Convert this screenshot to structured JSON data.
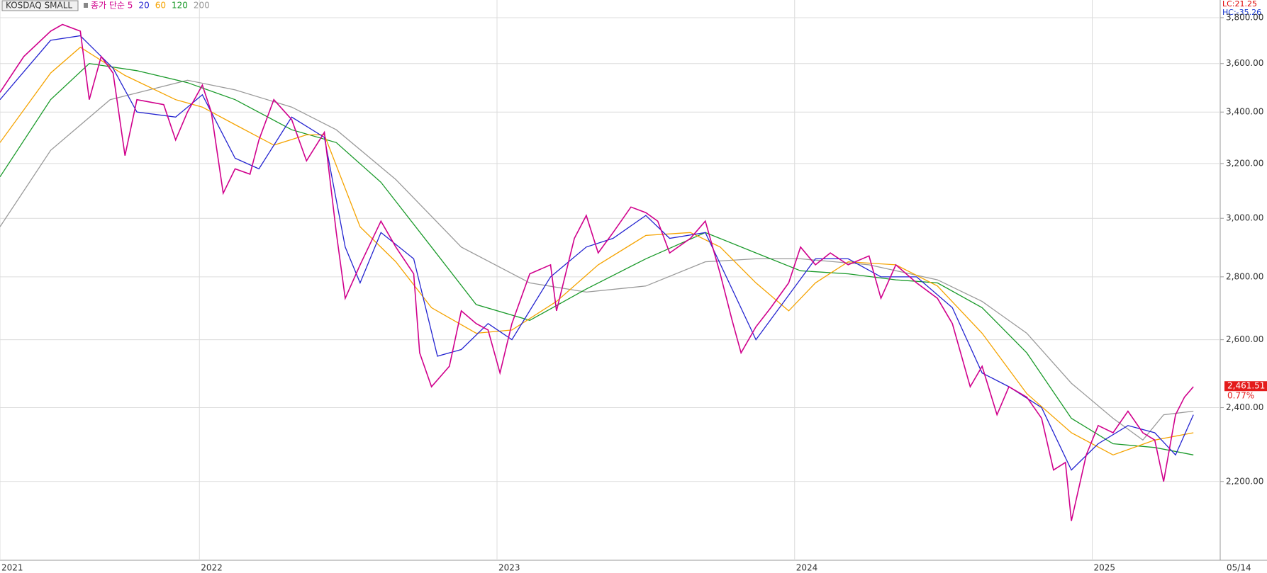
{
  "chart_data": {
    "type": "line",
    "title": "KOSDAQ SMALL",
    "log_scale": true,
    "grid": true,
    "xlim": [
      2021.33,
      2025.43
    ],
    "xticks": [
      {
        "value": 2021.33,
        "label": "2021"
      },
      2022,
      2023,
      2024,
      2025
    ],
    "ylim": [
      2005,
      3880
    ],
    "yticks": [
      {
        "value": 2200,
        "label": "2,200.00"
      },
      {
        "value": 2400,
        "label": "2,400.00"
      },
      {
        "value": 2600,
        "label": "2,600.00"
      },
      {
        "value": 2800,
        "label": "2,800.00"
      },
      {
        "value": 3000,
        "label": "3,000.00"
      },
      {
        "value": 3200,
        "label": "3,200.00"
      },
      {
        "value": 3400,
        "label": "3,400.00"
      },
      {
        "value": 3600,
        "label": "3,600.00"
      },
      {
        "value": 3800,
        "label": "3,800.00"
      }
    ],
    "series": [
      {
        "name": "종가 단순 5",
        "color": "#d0008c",
        "x": [
          2021.33,
          2021.41,
          2021.5,
          2021.54,
          2021.6,
          2021.63,
          2021.67,
          2021.71,
          2021.75,
          2021.79,
          2021.88,
          2021.92,
          2021.96,
          2022.01,
          2022.04,
          2022.08,
          2022.12,
          2022.17,
          2022.2,
          2022.25,
          2022.31,
          2022.36,
          2022.42,
          2022.46,
          2022.49,
          2022.54,
          2022.61,
          2022.66,
          2022.72,
          2022.74,
          2022.78,
          2022.84,
          2022.88,
          2022.93,
          2022.97,
          2023.01,
          2023.05,
          2023.11,
          2023.18,
          2023.2,
          2023.26,
          2023.3,
          2023.34,
          2023.39,
          2023.45,
          2023.5,
          2023.54,
          2023.58,
          2023.65,
          2023.7,
          2023.75,
          2023.79,
          2023.82,
          2023.87,
          2023.92,
          2023.98,
          2024.02,
          2024.07,
          2024.12,
          2024.18,
          2024.25,
          2024.29,
          2024.34,
          2024.41,
          2024.48,
          2024.53,
          2024.59,
          2024.63,
          2024.68,
          2024.72,
          2024.78,
          2024.83,
          2024.87,
          2024.91,
          2024.93,
          2024.98,
          2025.02,
          2025.07,
          2025.12,
          2025.17,
          2025.21,
          2025.24,
          2025.28,
          2025.31,
          2025.34
        ],
        "values": [
          3480,
          3630,
          3740,
          3770,
          3740,
          3450,
          3630,
          3560,
          3230,
          3450,
          3430,
          3290,
          3400,
          3510,
          3400,
          3090,
          3180,
          3160,
          3290,
          3450,
          3370,
          3210,
          3320,
          2950,
          2730,
          2840,
          2990,
          2900,
          2810,
          2560,
          2460,
          2520,
          2690,
          2650,
          2630,
          2500,
          2650,
          2810,
          2840,
          2690,
          2930,
          3010,
          2880,
          2950,
          3040,
          3020,
          2990,
          2880,
          2930,
          2990,
          2810,
          2660,
          2560,
          2640,
          2700,
          2780,
          2900,
          2840,
          2880,
          2840,
          2870,
          2730,
          2840,
          2780,
          2730,
          2650,
          2460,
          2520,
          2380,
          2460,
          2430,
          2370,
          2230,
          2250,
          2100,
          2270,
          2350,
          2330,
          2390,
          2330,
          2310,
          2200,
          2380,
          2430,
          2460
        ]
      },
      {
        "name": "20",
        "color": "#2424d0",
        "x": [
          2021.33,
          2021.5,
          2021.6,
          2021.71,
          2021.79,
          2021.92,
          2022.01,
          2022.12,
          2022.2,
          2022.31,
          2022.42,
          2022.49,
          2022.54,
          2022.61,
          2022.72,
          2022.8,
          2022.88,
          2022.97,
          2023.05,
          2023.18,
          2023.3,
          2023.39,
          2023.5,
          2023.58,
          2023.7,
          2023.79,
          2023.87,
          2023.98,
          2024.07,
          2024.18,
          2024.29,
          2024.41,
          2024.53,
          2024.63,
          2024.72,
          2024.83,
          2024.93,
          2025.02,
          2025.12,
          2025.21,
          2025.28,
          2025.34
        ],
        "values": [
          3450,
          3700,
          3720,
          3580,
          3400,
          3380,
          3470,
          3220,
          3180,
          3380,
          3300,
          2900,
          2780,
          2950,
          2860,
          2550,
          2570,
          2650,
          2600,
          2800,
          2900,
          2930,
          3010,
          2930,
          2950,
          2760,
          2600,
          2740,
          2860,
          2860,
          2800,
          2800,
          2700,
          2500,
          2460,
          2400,
          2230,
          2300,
          2350,
          2330,
          2270,
          2380
        ]
      },
      {
        "name": "60",
        "color": "#f5a300",
        "x": [
          2021.33,
          2021.5,
          2021.6,
          2021.75,
          2021.92,
          2022.01,
          2022.12,
          2022.25,
          2022.36,
          2022.42,
          2022.54,
          2022.66,
          2022.78,
          2022.93,
          2023.05,
          2023.2,
          2023.34,
          2023.5,
          2023.65,
          2023.75,
          2023.87,
          2023.98,
          2024.07,
          2024.18,
          2024.34,
          2024.48,
          2024.63,
          2024.78,
          2024.93,
          2025.07,
          2025.21,
          2025.34
        ],
        "values": [
          3280,
          3560,
          3670,
          3550,
          3450,
          3420,
          3350,
          3270,
          3310,
          3310,
          2970,
          2850,
          2700,
          2620,
          2630,
          2720,
          2840,
          2940,
          2950,
          2900,
          2780,
          2690,
          2780,
          2850,
          2840,
          2770,
          2620,
          2440,
          2330,
          2270,
          2310,
          2330
        ]
      },
      {
        "name": "120",
        "color": "#1a9a2a",
        "x": [
          2021.33,
          2021.5,
          2021.63,
          2021.79,
          2021.96,
          2022.12,
          2022.31,
          2022.46,
          2022.61,
          2022.78,
          2022.93,
          2023.11,
          2023.3,
          2023.5,
          2023.7,
          2023.87,
          2024.02,
          2024.18,
          2024.34,
          2024.48,
          2024.63,
          2024.78,
          2024.93,
          2025.07,
          2025.21,
          2025.34
        ],
        "values": [
          3150,
          3450,
          3600,
          3570,
          3520,
          3450,
          3330,
          3280,
          3130,
          2900,
          2710,
          2660,
          2760,
          2860,
          2950,
          2880,
          2820,
          2810,
          2790,
          2780,
          2700,
          2560,
          2370,
          2300,
          2290,
          2270
        ]
      },
      {
        "name": "200",
        "color": "#9a9a9a",
        "x": [
          2021.33,
          2021.5,
          2021.7,
          2021.96,
          2022.12,
          2022.31,
          2022.46,
          2022.66,
          2022.88,
          2023.11,
          2023.3,
          2023.5,
          2023.7,
          2023.87,
          2024.02,
          2024.25,
          2024.48,
          2024.63,
          2024.78,
          2024.93,
          2025.07,
          2025.17,
          2025.24,
          2025.34
        ],
        "values": [
          2970,
          3250,
          3450,
          3530,
          3490,
          3420,
          3330,
          3140,
          2900,
          2780,
          2750,
          2770,
          2850,
          2860,
          2860,
          2840,
          2790,
          2720,
          2620,
          2470,
          2370,
          2310,
          2380,
          2390
        ]
      }
    ],
    "lc_label": "LC:21.25",
    "hc_label": "HC:-35.26",
    "last_value": {
      "value": 2461.51,
      "label": "2,461.51"
    },
    "change_pct": {
      "value": 0.77,
      "label": "0.77%"
    },
    "last_date_label": "05/14"
  }
}
